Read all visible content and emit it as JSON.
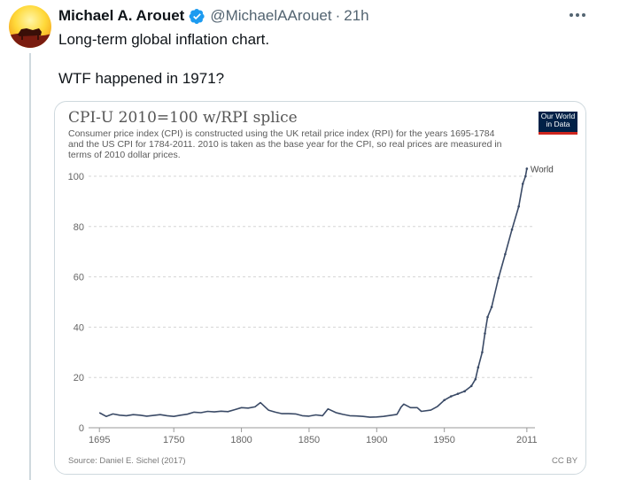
{
  "post": {
    "display_name": "Michael A. Arouet",
    "handle": "@MichaelAArouet",
    "separator": "·",
    "time": "21h",
    "text_line1": "Long-term global inflation chart.",
    "text_line2": "WTF happened in 1971?",
    "verified_color": "#1d9bf0"
  },
  "chart_card": {
    "title": "CPI-U 2010=100 w/RPI splice",
    "subtitle": "Consumer price index (CPI) is constructed using the UK retail price index (RPI) for the years 1695-1784 and the US CPI for 1784-2011. 2010 is taken as the base year for the CPI, so real prices are measured in terms of 2010 dollar prices.",
    "logo_line1": "Our World",
    "logo_line2": "in Data",
    "source": "Source: Daniel E. Sichel (2017)",
    "license": "CC BY"
  },
  "chart_data": {
    "type": "line",
    "title": "CPI-U 2010=100 w/RPI splice",
    "xlabel": "",
    "ylabel": "",
    "xlim": [
      1687,
      2017
    ],
    "ylim": [
      0,
      100
    ],
    "x_ticks": [
      "1695",
      "1750",
      "1800",
      "1850",
      "1900",
      "1950",
      "2011"
    ],
    "y_ticks": [
      "0",
      "20",
      "40",
      "60",
      "80",
      "100"
    ],
    "grid": "horizontal dashed",
    "series": [
      {
        "name": "World",
        "color": "#3a4a66",
        "x": [
          1695,
          1700,
          1705,
          1710,
          1715,
          1720,
          1725,
          1730,
          1735,
          1740,
          1745,
          1750,
          1755,
          1760,
          1765,
          1770,
          1775,
          1780,
          1785,
          1790,
          1795,
          1800,
          1805,
          1810,
          1814,
          1820,
          1825,
          1830,
          1835,
          1840,
          1845,
          1850,
          1855,
          1860,
          1864,
          1870,
          1875,
          1880,
          1885,
          1890,
          1895,
          1900,
          1905,
          1910,
          1915,
          1918,
          1920,
          1925,
          1930,
          1933,
          1940,
          1945,
          1950,
          1955,
          1960,
          1965,
          1970,
          1973,
          1975,
          1978,
          1980,
          1982,
          1985,
          1990,
          1995,
          2000,
          2005,
          2008,
          2010,
          2011
        ],
        "values": [
          6.0,
          4.5,
          5.5,
          5.0,
          4.8,
          5.2,
          5.0,
          4.6,
          4.9,
          5.2,
          4.8,
          4.5,
          5.0,
          5.4,
          6.2,
          6.0,
          6.5,
          6.3,
          6.6,
          6.4,
          7.2,
          8.0,
          7.8,
          8.3,
          10.0,
          7.0,
          6.2,
          5.6,
          5.6,
          5.5,
          4.8,
          4.6,
          5.1,
          4.8,
          7.5,
          6.0,
          5.3,
          4.8,
          4.7,
          4.5,
          4.2,
          4.3,
          4.5,
          4.9,
          5.3,
          8.2,
          9.4,
          8.0,
          8.0,
          6.5,
          7.0,
          8.5,
          11.0,
          12.5,
          13.5,
          14.5,
          16.6,
          19.3,
          24.0,
          30.0,
          37.5,
          44.0,
          48.0,
          59.5,
          69.0,
          78.8,
          88.0,
          97.0,
          100.0,
          103.0
        ]
      }
    ]
  }
}
